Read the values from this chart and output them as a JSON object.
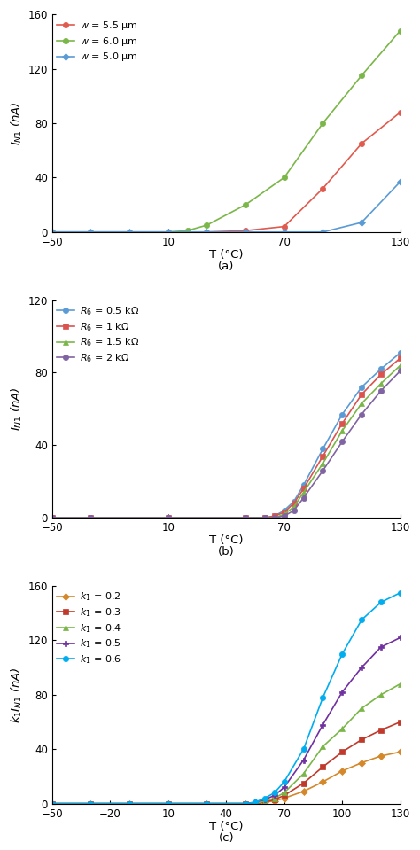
{
  "panel_a": {
    "title": "(a)",
    "xlabel": "T (°C)",
    "ylabel": "I_N1_nA",
    "xlim": [
      -50,
      130
    ],
    "ylim": [
      0,
      160
    ],
    "xticks": [
      -50,
      10,
      70,
      130
    ],
    "yticks": [
      0,
      40,
      80,
      120,
      160
    ],
    "series": [
      {
        "label": "w = 5.5 μm",
        "color": "#e05a4e",
        "marker": "o",
        "x": [
          -50,
          -30,
          -10,
          10,
          30,
          50,
          70,
          90,
          110,
          130
        ],
        "y": [
          0,
          0,
          0,
          0,
          0,
          1,
          4,
          32,
          65,
          88
        ]
      },
      {
        "label": "w = 6.0 μm",
        "color": "#7ab648",
        "marker": "o",
        "x": [
          -50,
          -30,
          -10,
          10,
          20,
          30,
          50,
          70,
          90,
          110,
          130
        ],
        "y": [
          0,
          0,
          0,
          0,
          1,
          5,
          20,
          40,
          80,
          115,
          148
        ]
      },
      {
        "label": "w = 5.0 μm",
        "color": "#5b9bd5",
        "marker": "D",
        "x": [
          -50,
          -30,
          -10,
          10,
          30,
          50,
          70,
          90,
          110,
          130
        ],
        "y": [
          0,
          0,
          0,
          0,
          0,
          0,
          0,
          0,
          7,
          37
        ]
      }
    ]
  },
  "panel_b": {
    "title": "(b)",
    "xlabel": "T (°C)",
    "ylabel": "I_N1_nA",
    "xlim": [
      -50,
      130
    ],
    "ylim": [
      0,
      120
    ],
    "xticks": [
      -50,
      10,
      70,
      130
    ],
    "yticks": [
      0,
      40,
      80,
      120
    ],
    "series": [
      {
        "label": "R_6 = 0.5 kΩ",
        "color": "#5b9bd5",
        "marker": "o",
        "x": [
          -50,
          -30,
          10,
          50,
          60,
          65,
          70,
          75,
          80,
          90,
          100,
          110,
          120,
          130
        ],
        "y": [
          0,
          0,
          0,
          0,
          0,
          1,
          4,
          9,
          18,
          38,
          57,
          72,
          82,
          91
        ]
      },
      {
        "label": "R_6 = 1 kΩ",
        "color": "#d9534f",
        "marker": "s",
        "x": [
          -50,
          -30,
          10,
          50,
          60,
          65,
          70,
          75,
          80,
          90,
          100,
          110,
          120,
          130
        ],
        "y": [
          0,
          0,
          0,
          0,
          0,
          1,
          3,
          8,
          16,
          34,
          52,
          68,
          79,
          88
        ]
      },
      {
        "label": "R_6 = 1.5 kΩ",
        "color": "#7ab648",
        "marker": "^",
        "x": [
          -50,
          -30,
          10,
          50,
          60,
          65,
          70,
          75,
          80,
          90,
          100,
          110,
          120,
          130
        ],
        "y": [
          0,
          0,
          0,
          0,
          0,
          0,
          2,
          6,
          14,
          30,
          48,
          63,
          74,
          84
        ]
      },
      {
        "label": "R_6 = 2 kΩ",
        "color": "#8064a2",
        "marker": "o",
        "x": [
          -50,
          -30,
          10,
          50,
          60,
          65,
          70,
          75,
          80,
          90,
          100,
          110,
          120,
          130
        ],
        "y": [
          0,
          0,
          0,
          0,
          0,
          0,
          1,
          4,
          11,
          26,
          42,
          57,
          70,
          81
        ]
      }
    ]
  },
  "panel_c": {
    "title": "(c)",
    "xlabel": "T (°C)",
    "ylabel": "k1_I_N1_nA",
    "xlim": [
      -50,
      130
    ],
    "ylim": [
      0,
      160
    ],
    "xticks": [
      -50,
      -20,
      10,
      40,
      70,
      100,
      130
    ],
    "yticks": [
      0,
      40,
      80,
      120,
      160
    ],
    "series": [
      {
        "label": "k_1 = 0.2",
        "color": "#d4882a",
        "marker": "D",
        "x": [
          -50,
          -30,
          -10,
          10,
          30,
          50,
          55,
          60,
          65,
          70,
          80,
          90,
          100,
          110,
          120,
          130
        ],
        "y": [
          0,
          0,
          0,
          0,
          0,
          0,
          0,
          1,
          2,
          4,
          9,
          16,
          24,
          30,
          35,
          38
        ]
      },
      {
        "label": "k_1 = 0.3",
        "color": "#c0392b",
        "marker": "s",
        "x": [
          -50,
          -30,
          -10,
          10,
          30,
          50,
          55,
          60,
          65,
          70,
          80,
          90,
          100,
          110,
          120,
          130
        ],
        "y": [
          0,
          0,
          0,
          0,
          0,
          0,
          0,
          1,
          3,
          6,
          15,
          27,
          38,
          47,
          54,
          60
        ]
      },
      {
        "label": "k_1 = 0.4",
        "color": "#7ab648",
        "marker": "^",
        "x": [
          -50,
          -30,
          -10,
          10,
          30,
          50,
          55,
          60,
          65,
          70,
          80,
          90,
          100,
          110,
          120,
          130
        ],
        "y": [
          0,
          0,
          0,
          0,
          0,
          0,
          0,
          2,
          4,
          8,
          22,
          42,
          55,
          70,
          80,
          88
        ]
      },
      {
        "label": "k_1 = 0.5",
        "color": "#7030a0",
        "marker": "P",
        "x": [
          -50,
          -30,
          -10,
          10,
          30,
          50,
          55,
          60,
          65,
          70,
          80,
          90,
          100,
          110,
          120,
          130
        ],
        "y": [
          0,
          0,
          0,
          0,
          0,
          0,
          1,
          3,
          6,
          12,
          32,
          58,
          82,
          100,
          115,
          122
        ]
      },
      {
        "label": "k_1 = 0.6",
        "color": "#00adef",
        "marker": "o",
        "x": [
          -50,
          -30,
          -10,
          10,
          30,
          50,
          55,
          60,
          65,
          70,
          80,
          90,
          100,
          110,
          120,
          130
        ],
        "y": [
          0,
          0,
          0,
          0,
          0,
          0,
          1,
          4,
          8,
          16,
          40,
          78,
          110,
          135,
          148,
          155
        ]
      }
    ]
  }
}
